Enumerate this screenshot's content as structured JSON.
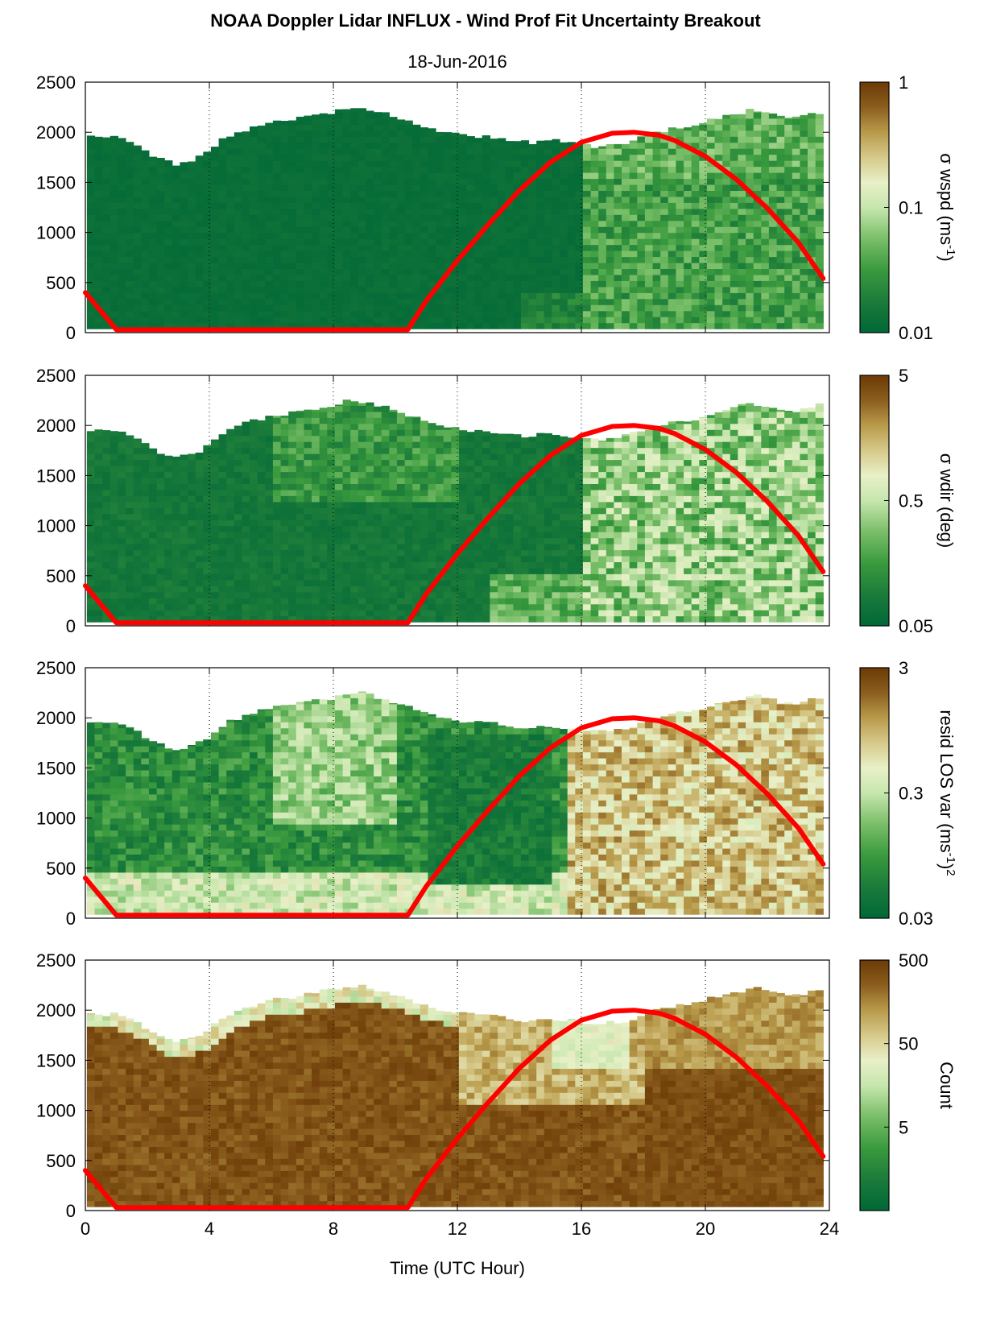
{
  "title": "NOAA Doppler Lidar INFLUX - Wind Prof Fit Uncertainty Breakout",
  "subtitle": "18-Jun-2016",
  "xlabel": "Time (UTC Hour)",
  "colors": {
    "sun_curve": "#ff0000",
    "colormap": [
      "#006837",
      "#1a7a3a",
      "#3a9a3e",
      "#7cc06a",
      "#c7e6ae",
      "#e8f0c8",
      "#d6c98a",
      "#b89a4a",
      "#8b5e1e",
      "#6b3a06"
    ]
  },
  "chart_data": [
    {
      "type": "heatmap",
      "panel": "wspd-uncertainty",
      "xlim": [
        0,
        24
      ],
      "ylim": [
        0,
        2500
      ],
      "xticks": [
        "0",
        "4",
        "8",
        "12",
        "16",
        "20",
        "24"
      ],
      "yticks": [
        "0",
        "500",
        "1000",
        "1500",
        "2000",
        "2500"
      ],
      "colorbar_label": "σ wspd (ms",
      "colorbar_label_sup": "-1",
      "colorbar_label_end": ")",
      "colorbar_scale": "log",
      "colorbar_ticks": [
        "0.01",
        "0.1",
        "1"
      ],
      "grid": "vertical dotted at 4-hour intervals",
      "description_levels": {
        "before_16h": "low (~0.01)",
        "after_16h_aloft": "moderate (~0.02-0.1)"
      }
    },
    {
      "type": "heatmap",
      "panel": "wdir-uncertainty",
      "xlim": [
        0,
        24
      ],
      "ylim": [
        0,
        2500
      ],
      "xticks": [
        "0",
        "4",
        "8",
        "12",
        "16",
        "20",
        "24"
      ],
      "yticks": [
        "0",
        "500",
        "1000",
        "1500",
        "2000",
        "2500"
      ],
      "colorbar_label": "σ wdir (deg)",
      "colorbar_scale": "log",
      "colorbar_ticks": [
        "0.05",
        "0.5",
        "5"
      ],
      "grid": "vertical dotted at 4-hour intervals"
    },
    {
      "type": "heatmap",
      "panel": "residual-los-variance",
      "xlim": [
        0,
        24
      ],
      "ylim": [
        0,
        2500
      ],
      "xticks": [
        "0",
        "4",
        "8",
        "12",
        "16",
        "20",
        "24"
      ],
      "yticks": [
        "0",
        "500",
        "1000",
        "1500",
        "2000",
        "2500"
      ],
      "colorbar_label": "resid LOS var (ms",
      "colorbar_label_sup": "-1",
      "colorbar_label_mid": ")",
      "colorbar_label_sup2": "2",
      "colorbar_scale": "log",
      "colorbar_ticks": [
        "0.03",
        "0.3",
        "3"
      ],
      "grid": "vertical dotted at 4-hour intervals"
    },
    {
      "type": "heatmap",
      "panel": "count",
      "xlim": [
        0,
        24
      ],
      "ylim": [
        0,
        2500
      ],
      "xticks": [
        "0",
        "4",
        "8",
        "12",
        "16",
        "20",
        "24"
      ],
      "yticks": [
        "0",
        "500",
        "1000",
        "1500",
        "2000",
        "2500"
      ],
      "colorbar_label": "Count",
      "colorbar_scale": "log",
      "colorbar_ticks": [
        "5",
        "50",
        "500"
      ],
      "grid": "vertical dotted at 4-hour intervals"
    }
  ],
  "data_top_profile": {
    "x_hours": [
      0,
      0.5,
      1,
      1.5,
      2,
      2.5,
      3,
      3.5,
      4,
      4.5,
      5,
      5.5,
      6,
      6.5,
      7,
      7.5,
      8,
      8.5,
      9,
      9.5,
      10,
      10.5,
      11,
      11.5,
      12,
      12.5,
      13,
      13.5,
      14,
      14.5,
      15,
      15.5,
      16,
      16.5,
      17,
      17.5,
      18,
      18.5,
      19,
      19.5,
      20,
      20.5,
      21,
      21.5,
      22,
      22.5,
      23,
      23.5,
      23.8
    ],
    "top_m": [
      1960,
      1960,
      1960,
      1900,
      1800,
      1720,
      1680,
      1720,
      1800,
      1950,
      2000,
      2050,
      2100,
      2120,
      2150,
      2180,
      2200,
      2250,
      2240,
      2200,
      2150,
      2100,
      2050,
      2000,
      1980,
      1950,
      1950,
      1920,
      1900,
      1900,
      1920,
      1900,
      1880,
      1860,
      1880,
      1900,
      1950,
      2000,
      2050,
      2050,
      2100,
      2150,
      2180,
      2220,
      2200,
      2150,
      2150,
      2200,
      2200
    ]
  },
  "sun_curve": {
    "x_hours": [
      0,
      1,
      10.4,
      11,
      12,
      13,
      14,
      15,
      16,
      17,
      17.7,
      18.5,
      19,
      20,
      21,
      22,
      23,
      23.8
    ],
    "y_m": [
      400,
      30,
      30,
      320,
      720,
      1080,
      1420,
      1700,
      1900,
      1990,
      2000,
      1970,
      1920,
      1760,
      1530,
      1240,
      900,
      540
    ]
  }
}
